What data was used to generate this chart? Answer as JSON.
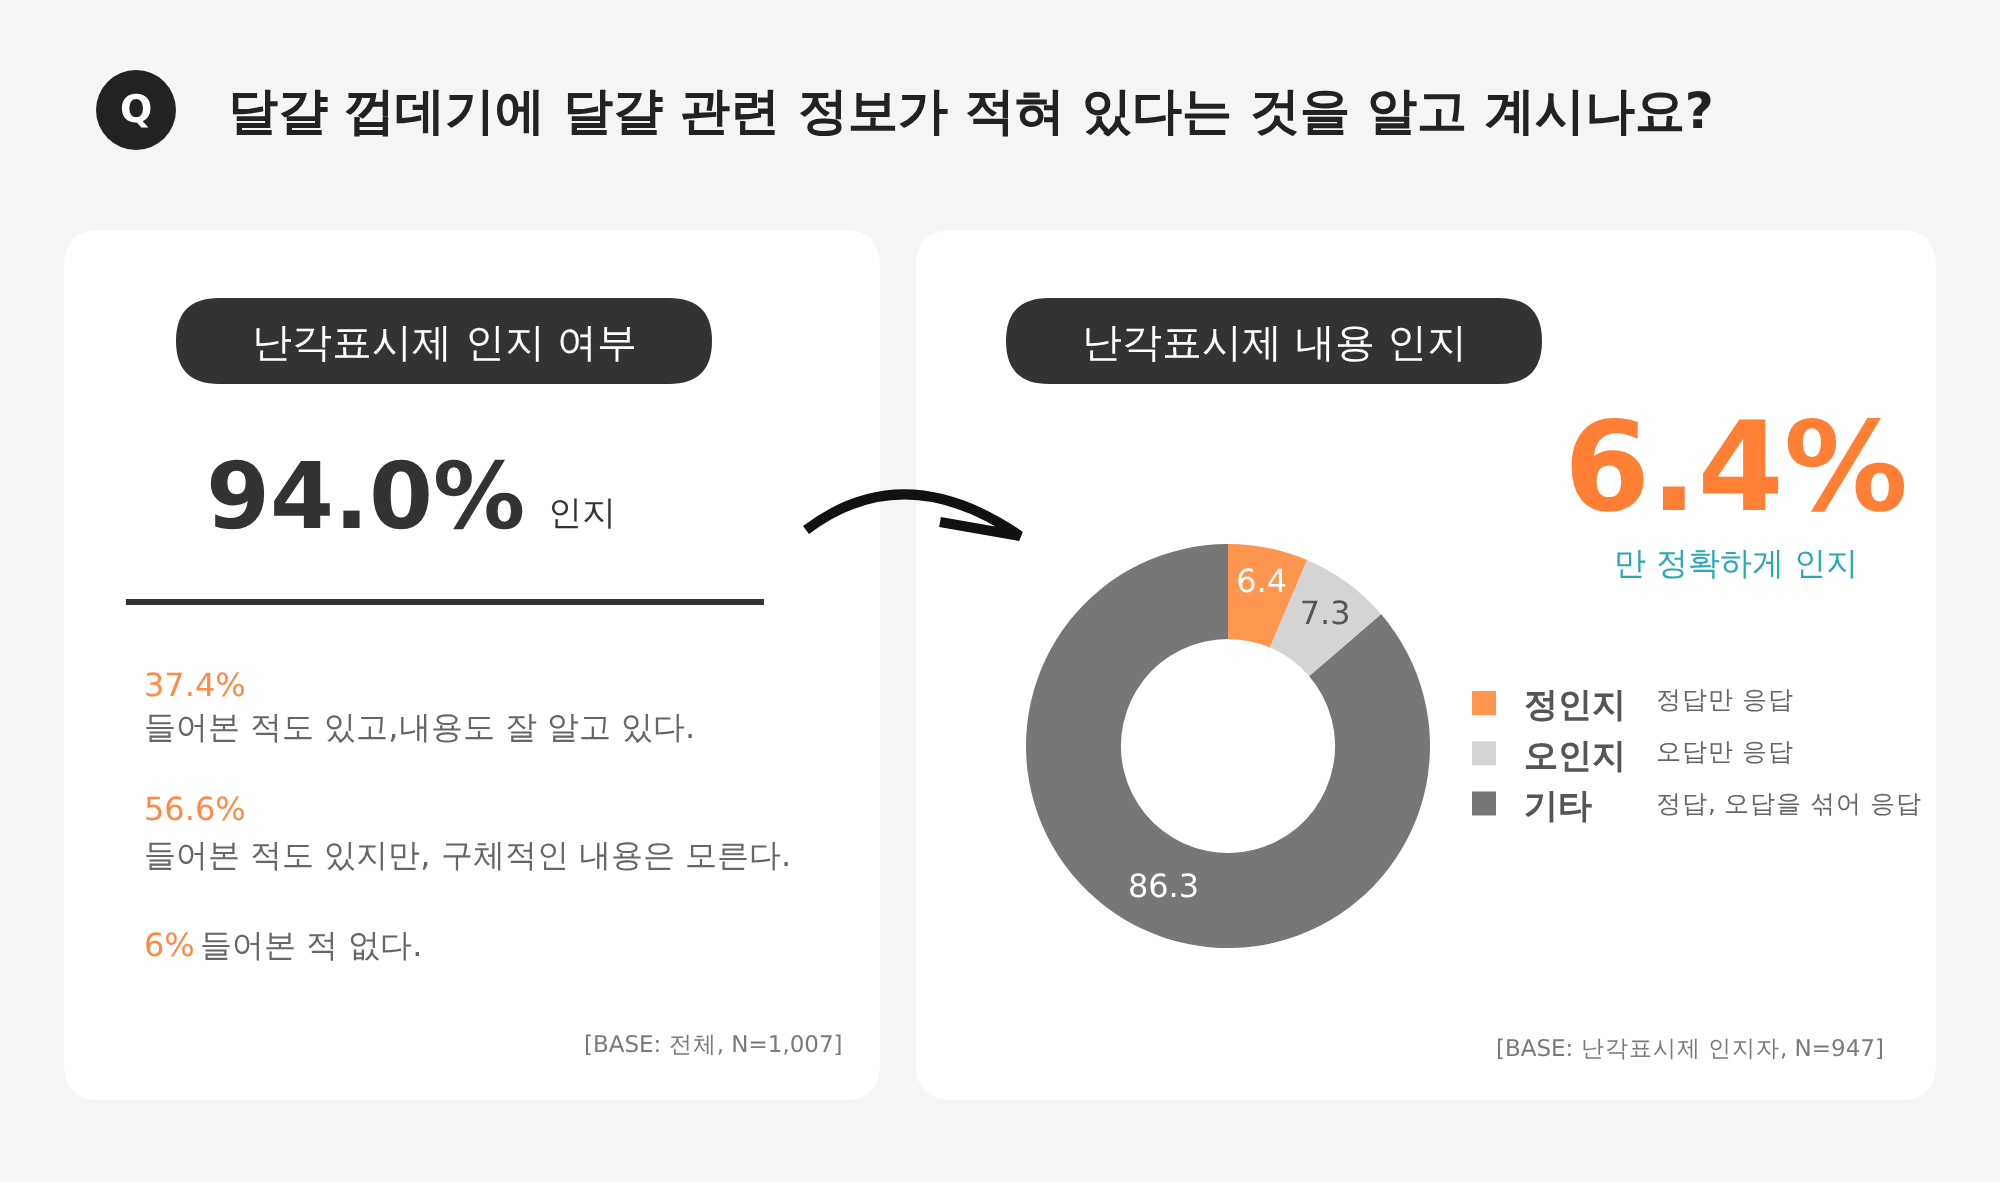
{
  "chart_data": [
    {
      "type": "other",
      "title": "달걀 껍데기에 달걀 관련 정보가 적혀 있다는 것을 알고 계시나요?",
      "annotations": [
        "Q"
      ]
    },
    {
      "type": "other",
      "title": "난각표시제 인지 여부",
      "annotations": [
        "94.0%",
        "인지",
        "37.4%",
        "들어본 적도 있고,내용도 잘 알고 있다.",
        "56.6%",
        "들어본 적도 있지만, 구체적인 내용은 모른다.",
        "6%",
        "들어본 적 없다.",
        "[BASE: 전체, N=1,007]"
      ]
    },
    {
      "type": "donut",
      "title": "난각표시제 내용 인지",
      "categories": [
        "정인지",
        "오인지",
        "기타"
      ],
      "values": [
        6.4,
        7.3,
        86.3
      ],
      "colors": [
        "#ff9650",
        "#d4d4d4",
        "#777777"
      ],
      "data_labels": true,
      "legend": "right",
      "annotations": [
        "6.4%",
        "만 정확하게 인지",
        "정답만 응답",
        "오답만 응답",
        "정답, 오답을 섞어 응답",
        "[BASE: 난각표시제 인지자, N=947]"
      ]
    }
  ]
}
